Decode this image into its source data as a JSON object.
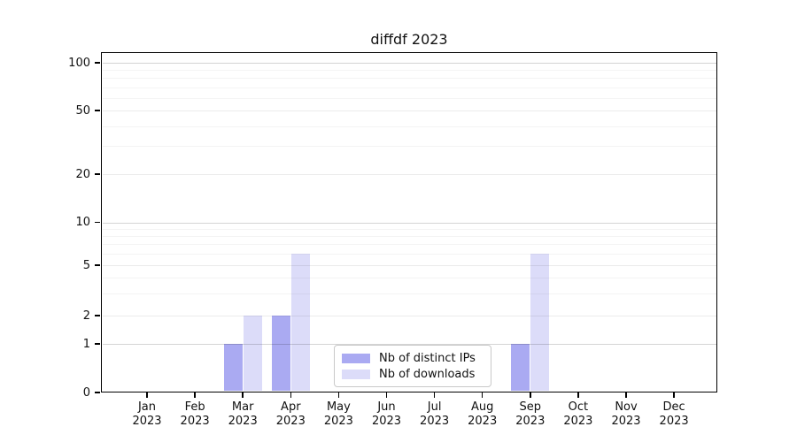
{
  "title": "diffdf 2023",
  "chart_data": {
    "type": "bar",
    "title": "diffdf 2023",
    "categories": [
      "Jan",
      "Feb",
      "Mar",
      "Apr",
      "May",
      "Jun",
      "Jul",
      "Aug",
      "Sep",
      "Oct",
      "Nov",
      "Dec"
    ],
    "category_year": "2023",
    "series": [
      {
        "name": "Nb of distinct IPs",
        "color": "#aaaaf2",
        "values": [
          0,
          0,
          1,
          2,
          0,
          0,
          0,
          0,
          1,
          0,
          0,
          0
        ]
      },
      {
        "name": "Nb of downloads",
        "color": "#dcdcf9",
        "values": [
          0,
          0,
          2,
          6,
          0,
          0,
          0,
          0,
          6,
          0,
          0,
          0
        ]
      }
    ],
    "y_ticks": [
      0,
      1,
      2,
      5,
      10,
      20,
      50,
      100
    ],
    "y_minor_ticks": [
      3,
      4,
      6,
      7,
      8,
      9,
      30,
      40,
      60,
      70,
      80,
      90
    ],
    "y_scale": "symlog",
    "ylim": [
      0,
      110
    ],
    "grid": true,
    "grid_above_bars": true,
    "legend_position": "bottom-center",
    "colors": {
      "major_decade_grid": "rgba(0,0,0,0.17)",
      "major_grid": "rgba(0,0,0,0.08)",
      "minor_grid": "rgba(0,0,0,0.045)",
      "axis": "#000000",
      "text": "#111111"
    }
  }
}
